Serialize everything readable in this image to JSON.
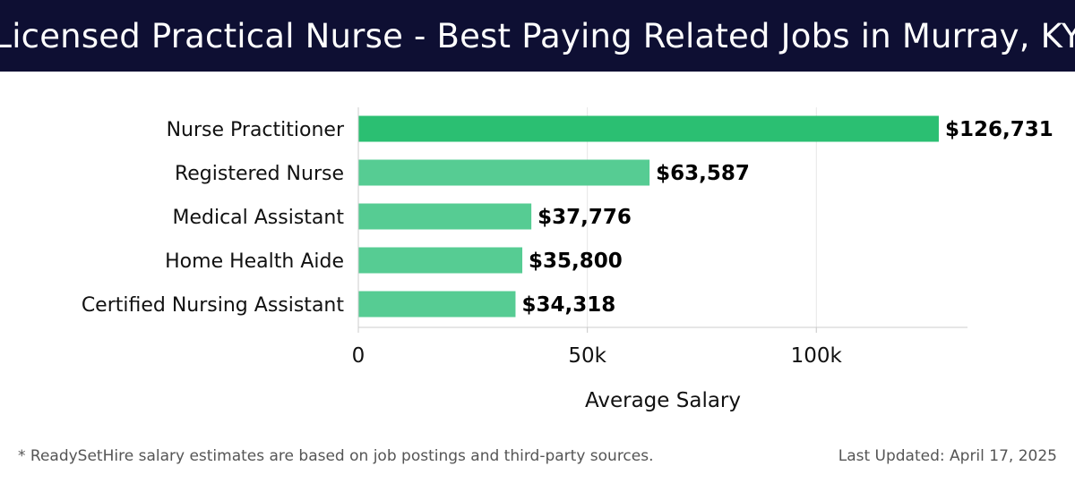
{
  "header": {
    "title": "Licensed Practical Nurse - Best Paying Related Jobs in Murray, KY"
  },
  "chart_data": {
    "type": "bar",
    "orientation": "horizontal",
    "title": "Licensed Practical Nurse - Best Paying Related Jobs in Murray, KY",
    "xlabel": "Average Salary",
    "ylabel": "",
    "categories": [
      "Nurse Practitioner",
      "Registered Nurse",
      "Medical Assistant",
      "Home Health Aide",
      "Certified Nursing Assistant"
    ],
    "values": [
      126731,
      63587,
      37776,
      35800,
      34318
    ],
    "value_labels": [
      "$126,731",
      "$63,587",
      "$37,776",
      "$35,800",
      "$34,318"
    ],
    "xlim": [
      0,
      133000
    ],
    "xticks": [
      0,
      50000,
      100000
    ],
    "xtick_labels": [
      "0",
      "50k",
      "100k"
    ],
    "grid": true,
    "colors": {
      "top_bar": "#2bbf72",
      "bar": "#56cc93",
      "grid": "#e6e6e6",
      "axis": "#cccccc"
    }
  },
  "footer": {
    "note": "* ReadySetHire salary estimates are based on job postings and third-party sources.",
    "updated": "Last Updated: April 17, 2025"
  }
}
